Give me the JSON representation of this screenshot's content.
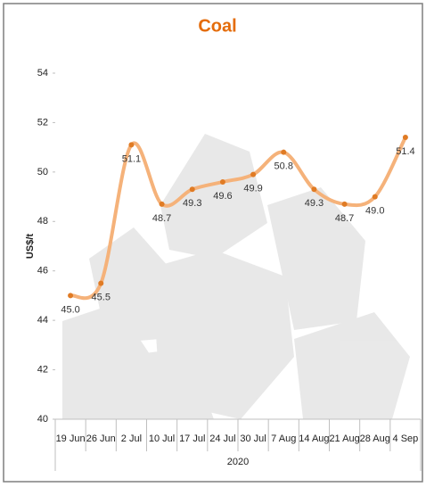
{
  "chart_data": {
    "type": "line",
    "title": "Coal",
    "y_label": "US$/t",
    "group_label": "2020",
    "categories": [
      "19 Jun",
      "26 Jun",
      "2 Jul",
      "10 Jul",
      "17 Jul",
      "24 Jul",
      "30 Jul",
      "7 Aug",
      "14 Aug",
      "21 Aug",
      "28 Aug",
      "4 Sep"
    ],
    "series": [
      {
        "name": "Coal",
        "color": "#f5b27a",
        "marker_color": "#e07b24",
        "values": [
          45.0,
          45.5,
          51.1,
          48.7,
          49.3,
          49.6,
          49.9,
          50.8,
          49.3,
          48.7,
          49.0,
          51.4
        ],
        "value_labels": [
          "45.0",
          "45.5",
          "51.1",
          "48.7",
          "49.3",
          "49.6",
          "49.9",
          "50.8",
          "49.3",
          "48.7",
          "49.0",
          "51.4"
        ]
      }
    ],
    "ylim": [
      40,
      54
    ],
    "yticks": [
      40,
      42,
      44,
      46,
      48,
      50,
      52,
      54
    ],
    "grid": false,
    "smooth": true
  }
}
